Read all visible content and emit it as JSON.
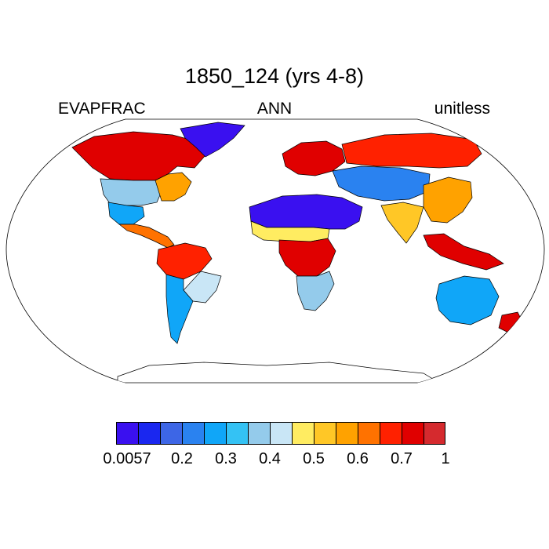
{
  "map": {
    "title": "1850_124 (yrs 4-8)",
    "left_label": "EVAPFRAC",
    "center_label": "ANN",
    "right_label": "unitless",
    "projection": "robinson",
    "variable_shown": "evaporative fraction, annual mean",
    "regions": [
      {
        "name": "north-america-north",
        "value": 0.75
      },
      {
        "name": "north-america-central",
        "value": 0.4
      },
      {
        "name": "north-america-east",
        "value": 0.6
      },
      {
        "name": "north-america-southwest",
        "value": 0.3
      },
      {
        "name": "central-america",
        "value": 0.65
      },
      {
        "name": "greenland",
        "value": 0.0057
      },
      {
        "name": "south-america-amazon",
        "value": 0.7
      },
      {
        "name": "south-america-east",
        "value": 0.45
      },
      {
        "name": "south-america-south",
        "value": 0.3
      },
      {
        "name": "europe",
        "value": 0.75
      },
      {
        "name": "russia-north",
        "value": 0.7
      },
      {
        "name": "central-asia",
        "value": 0.25
      },
      {
        "name": "sahara-arabia",
        "value": 0.0057
      },
      {
        "name": "sahel",
        "value": 0.5
      },
      {
        "name": "central-africa",
        "value": 0.75
      },
      {
        "name": "southern-africa",
        "value": 0.4
      },
      {
        "name": "india",
        "value": 0.55
      },
      {
        "name": "east-asia",
        "value": 0.6
      },
      {
        "name": "southeast-asia",
        "value": 0.75
      },
      {
        "name": "australia",
        "value": 0.3
      },
      {
        "name": "new-zealand",
        "value": 0.75
      },
      {
        "name": "antarctica",
        "value": null
      }
    ]
  },
  "colorbar": {
    "colors": [
      "#3a10f0",
      "#1a27f0",
      "#3d66e6",
      "#2a82f0",
      "#10a6f8",
      "#34c2f4",
      "#94cbeb",
      "#c9e6f6",
      "#ffec61",
      "#ffc726",
      "#ffa200",
      "#ff7200",
      "#ff2100",
      "#e00000",
      "#d52a2e"
    ],
    "tick_labels": [
      {
        "label": "0.0057",
        "boundary": 0
      },
      {
        "label": "0.2",
        "boundary": 3
      },
      {
        "label": "0.3",
        "boundary": 5
      },
      {
        "label": "0.4",
        "boundary": 7
      },
      {
        "label": "0.5",
        "boundary": 9
      },
      {
        "label": "0.6",
        "boundary": 11
      },
      {
        "label": "0.7",
        "boundary": 13
      },
      {
        "label": "1",
        "boundary": 15
      }
    ]
  }
}
